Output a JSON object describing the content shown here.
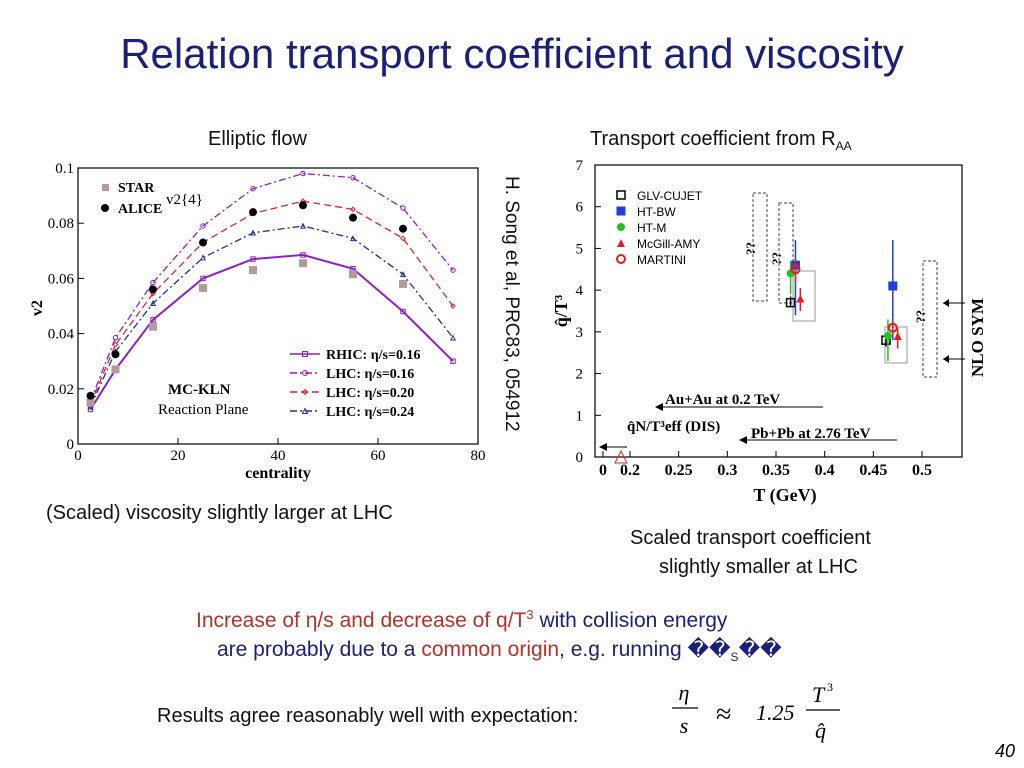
{
  "slide": {
    "title": "Relation transport coefficient and viscosity",
    "left_caption": "Elliptic flow",
    "right_caption_main": "Transport coefficient from R",
    "right_caption_sub": "AA",
    "citation": "H. Song et al, PRC83, 054912",
    "left_note": "(Scaled) viscosity slightly larger at LHC",
    "right_note_line1": "Scaled transport coefficient",
    "right_note_line2": "slightly smaller at LHC",
    "bottom_line1_a": "Increase of η/s and decrease of q/T",
    "bottom_line1_sup": "3",
    "bottom_line1_b": " with collision energy",
    "bottom_line2_a": "are probably due to a ",
    "bottom_line2_b": "common origin",
    "bottom_line2_c": ", e.g. running ",
    "bottom_line2_glyph": "��",
    "bottom_line2_sub": "S",
    "bottom_line2_glyph2": "��",
    "results_text": "Results agree reasonably well with expectation:",
    "formula_lhs_num": "η",
    "formula_lhs_den": "s",
    "formula_approx": "≈",
    "formula_coef": "1.25",
    "formula_rhs_num": "T",
    "formula_rhs_num_sup": "3",
    "formula_rhs_den": "q̂",
    "page_number": "40"
  },
  "colors": {
    "title": "#1a1f7a",
    "purple": "#8b1fc9",
    "red": "#d8262c",
    "blue": "#1f2fa3",
    "star": "#b59a9a",
    "accent_red_text": "#b4322a"
  },
  "chart_data": [
    {
      "type": "line",
      "xlabel": "centrality",
      "ylabel": "v2",
      "xlim": [
        0,
        80
      ],
      "ylim": [
        0,
        0.1
      ],
      "xticks": [
        "0",
        "20",
        "40",
        "60",
        "80"
      ],
      "yticks": [
        "0",
        "0.02",
        "0.04",
        "0.06",
        "0.08",
        "0.1"
      ],
      "annotation_v2": "v2{4}",
      "annotation_model": "MC-KLN",
      "annotation_plane": "Reaction Plane",
      "points_series": [
        {
          "name": "STAR",
          "color": "#b59a9a",
          "marker": "square",
          "x": [
            2.5,
            7.5,
            15,
            25,
            35,
            45,
            55,
            65
          ],
          "y": [
            0.015,
            0.027,
            0.0425,
            0.0565,
            0.063,
            0.0655,
            0.0615,
            0.058
          ]
        },
        {
          "name": "ALICE",
          "color": "#000000",
          "marker": "circle",
          "x": [
            2.5,
            7.5,
            15,
            25,
            35,
            45,
            55,
            65
          ],
          "y": [
            0.0175,
            0.0325,
            0.056,
            0.073,
            0.084,
            0.0865,
            0.082,
            0.078
          ]
        }
      ],
      "line_series": [
        {
          "name": "RHIC: η/s=0.16",
          "color": "#8b1fc9",
          "dash": "solid",
          "marker": "square",
          "x": [
            2.5,
            7.5,
            15,
            25,
            35,
            45,
            55,
            65,
            75
          ],
          "y": [
            0.0125,
            0.027,
            0.045,
            0.06,
            0.067,
            0.0685,
            0.0635,
            0.048,
            0.03
          ]
        },
        {
          "name": "LHC: η/s=0.16",
          "color": "#8b1fc9",
          "dash": "dashdot",
          "marker": "circle",
          "x": [
            2.5,
            7.5,
            15,
            25,
            35,
            45,
            55,
            65,
            75
          ],
          "y": [
            0.0155,
            0.0385,
            0.0585,
            0.079,
            0.0925,
            0.098,
            0.0965,
            0.0855,
            0.063
          ]
        },
        {
          "name": "LHC: η/s=0.20",
          "color": "#d8262c",
          "dash": "dashed",
          "marker": "diamond",
          "x": [
            2.5,
            7.5,
            15,
            25,
            35,
            45,
            55,
            65,
            75
          ],
          "y": [
            0.0145,
            0.036,
            0.0545,
            0.073,
            0.0835,
            0.088,
            0.085,
            0.0745,
            0.05
          ]
        },
        {
          "name": "LHC: η/s=0.24",
          "color": "#1f2fa3",
          "dash": "dashdot",
          "marker": "triangle",
          "x": [
            2.5,
            7.5,
            15,
            25,
            35,
            45,
            55,
            65,
            75
          ],
          "y": [
            0.0135,
            0.0335,
            0.051,
            0.0675,
            0.0765,
            0.079,
            0.0745,
            0.0615,
            0.0385
          ]
        }
      ]
    },
    {
      "type": "scatter",
      "xlabel": "T (GeV)",
      "ylabel": "q̂/T³",
      "xlim": [
        0.15,
        0.55
      ],
      "ylim": [
        0,
        7
      ],
      "xticks": [
        "0",
        "0.2",
        "0.25",
        "0.3",
        "0.35",
        "0.4",
        "0.45",
        "0.5"
      ],
      "yticks": [
        "0",
        "1",
        "2",
        "3",
        "4",
        "5",
        "6",
        "7"
      ],
      "annotations": [
        "??",
        "??",
        "??",
        "NLO SYM",
        "Au+Au at 0.2 TeV",
        "q̂N/T³eff (DIS)",
        "Pb+Pb at 2.76 TeV"
      ],
      "series": [
        {
          "name": "GLV-CUJET",
          "color": "#000000",
          "marker": "open-square",
          "points": [
            {
              "x": 0.365,
              "y": 3.7,
              "yerr": [
                0.1,
                0.15
              ]
            },
            {
              "x": 0.463,
              "y": 2.8,
              "yerr": [
                0.15,
                0.1
              ]
            }
          ]
        },
        {
          "name": "HT-BW",
          "color": "#1f3fdc",
          "marker": "filled-square",
          "points": [
            {
              "x": 0.37,
              "y": 4.6,
              "yerr": [
                1.2,
                0.6
              ]
            },
            {
              "x": 0.47,
              "y": 4.1,
              "yerr": [
                1.3,
                1.1
              ]
            }
          ]
        },
        {
          "name": "HT-M",
          "color": "#22c022",
          "marker": "filled-circle",
          "points": [
            {
              "x": 0.365,
              "y": 4.4,
              "yerr": [
                0.5,
                0.3
              ]
            },
            {
              "x": 0.465,
              "y": 2.9,
              "yerr": [
                0.6,
                0.4
              ]
            }
          ]
        },
        {
          "name": "McGill-AMY",
          "color": "#e02020",
          "marker": "filled-triangle",
          "points": [
            {
              "x": 0.375,
              "y": 3.8,
              "yerr": [
                0.3,
                0.25
              ]
            },
            {
              "x": 0.475,
              "y": 2.9,
              "yerr": [
                0.3,
                0.2
              ]
            }
          ]
        },
        {
          "name": "MARTINI",
          "color": "#e02020",
          "marker": "open-circle",
          "points": [
            {
              "x": 0.37,
              "y": 4.5,
              "yerr": [
                0.3,
                0.25
              ]
            },
            {
              "x": 0.47,
              "y": 3.1,
              "yerr": [
                0.2,
                0.15
              ]
            }
          ]
        }
      ]
    }
  ]
}
